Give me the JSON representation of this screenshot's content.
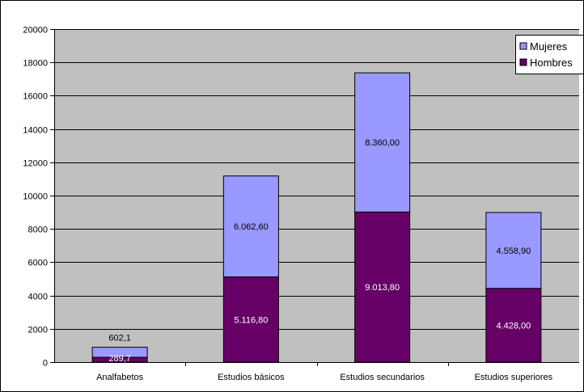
{
  "colors": {
    "plot_background": "#c0c0c0",
    "mujeres": "#9999ff",
    "hombres": "#660066",
    "grid": "#000000",
    "label_on_dark": "#ffffff",
    "label_on_light": "#000000"
  },
  "chart_data": {
    "type": "bar",
    "stacked": true,
    "title": "",
    "xlabel": "",
    "ylabel": "",
    "ylim": [
      0,
      20000
    ],
    "yticks": [
      0,
      2000,
      4000,
      6000,
      8000,
      10000,
      12000,
      14000,
      16000,
      18000,
      20000
    ],
    "grid": true,
    "legend_position": "top-right",
    "categories": [
      "Analfabetos",
      "Estudios básicos",
      "Estudios secundarios",
      "Estudios superiores"
    ],
    "series": [
      {
        "name": "Hombres",
        "color": "#660066",
        "values": [
          289.7,
          5116.8,
          9013.8,
          4428.0
        ],
        "labels": [
          "289,7",
          "5.116,80",
          "9.013,80",
          "4.428,00"
        ]
      },
      {
        "name": "Mujeres",
        "color": "#9999ff",
        "values": [
          602.1,
          6062.6,
          8360.0,
          4558.9
        ],
        "labels": [
          "602,1",
          "6.062,60",
          "8.360,00",
          "4.558,90"
        ]
      }
    ],
    "legend": [
      "Mujeres",
      "Hombres"
    ]
  }
}
